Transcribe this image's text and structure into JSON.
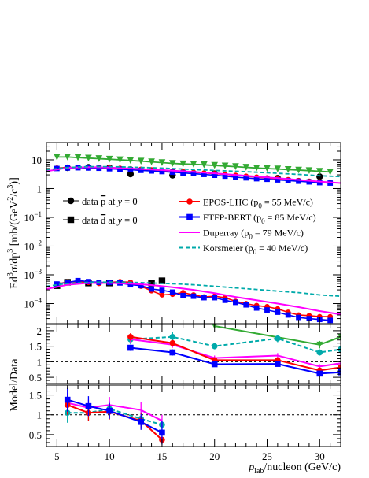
{
  "chart_data": [
    {
      "type": "line",
      "panel": "spectrum",
      "ylabel_parts": [
        "Ed",
        "3",
        "σ/dp",
        "3",
        " [mb/(GeV",
        "2",
        "/c",
        "3",
        ")]"
      ],
      "y_scale": "log",
      "xlim": [
        4,
        32
      ],
      "ylim": [
        2e-05,
        40
      ],
      "y_tick_labels": [
        {
          "v": 10,
          "text": "10"
        },
        {
          "v": 1,
          "text": "1"
        },
        {
          "v": 0.1,
          "base": "10",
          "exp": "−1"
        },
        {
          "v": 0.01,
          "base": "10",
          "exp": "−2"
        },
        {
          "v": 0.001,
          "base": "10",
          "exp": "−3"
        },
        {
          "v": 0.0001,
          "base": "10",
          "exp": "−4"
        }
      ],
      "legend_left": [
        {
          "key": "data_pbar",
          "prefix": "data ",
          "bar": "p",
          "middle": " at ",
          "italic": "y",
          "suffix": " = 0",
          "marker": "circle"
        },
        {
          "key": "data_dbar",
          "prefix": "data ",
          "bar": "d",
          "middle": " at ",
          "italic": "y",
          "suffix": " = 0",
          "marker": "square"
        }
      ],
      "legend_right": [
        {
          "key": "epos",
          "label": "EPOS-LHC",
          "param": "p",
          "sub": "0",
          "value": " = 55 MeV/c",
          "color": "#ff0000",
          "marker": "circle"
        },
        {
          "key": "ftfp",
          "label": "FTFP-BERT",
          "param": "p",
          "sub": "0",
          "value": " = 85 MeV/c",
          "color": "#0000ff",
          "marker": "square"
        },
        {
          "key": "dup",
          "label": "Duperray",
          "param": "p",
          "sub": "0",
          "value": " = 79 MeV/c",
          "color": "#ff00ff",
          "marker": "none"
        },
        {
          "key": "kor",
          "label": "Korsmeier",
          "param": "p",
          "sub": "0",
          "value": " = 40 MeV/c",
          "color": "#00aaaa",
          "marker": "none",
          "dashed": true
        }
      ],
      "series": [
        {
          "key": "data_pbar",
          "color": "#000000",
          "marker": "circle",
          "x": [
            6,
            8,
            10,
            12,
            16,
            20,
            26,
            30
          ],
          "y": [
            5.3,
            5.5,
            5.3,
            3.2,
            2.9,
            3.3,
            2.3,
            2.6
          ]
        },
        {
          "key": "data_dbar",
          "color": "#000000",
          "marker": "square",
          "x": [
            5,
            6,
            8,
            10,
            14,
            15
          ],
          "y": [
            0.00042,
            0.00055,
            0.00052,
            0.00052,
            0.00052,
            0.00062
          ]
        },
        {
          "key": "green_pbar",
          "color": "#33aa33",
          "marker": "triangle-down",
          "x": [
            5,
            6,
            7,
            8,
            9,
            10,
            11,
            12,
            13,
            14,
            15,
            16,
            17,
            18,
            19,
            20,
            21,
            22,
            23,
            24,
            25,
            26,
            27,
            28,
            29,
            30,
            31
          ],
          "y": [
            12.5,
            12.5,
            12,
            11.5,
            11,
            10.5,
            10,
            9.5,
            9,
            8.5,
            8,
            7.5,
            7.2,
            7,
            6.7,
            6.4,
            6.1,
            5.8,
            5.5,
            5.2,
            5,
            4.8,
            4.6,
            4.4,
            4.2,
            4,
            3.8
          ]
        },
        {
          "key": "epos_pbar",
          "color": "#ff0000",
          "marker": "circle",
          "x": [
            5,
            6,
            7,
            8,
            9,
            10,
            11,
            12,
            13,
            14,
            15,
            16,
            17,
            18,
            19,
            20,
            21,
            22,
            23,
            24,
            25,
            26,
            27,
            28,
            29,
            30,
            31
          ],
          "y": [
            5.2,
            5.4,
            5.5,
            5.5,
            5.4,
            5.3,
            5.1,
            4.9,
            4.7,
            4.5,
            4.3,
            4.1,
            3.9,
            3.7,
            3.5,
            3.3,
            3.1,
            2.9,
            2.7,
            2.5,
            2.35,
            2.2,
            2.05,
            1.9,
            1.8,
            1.7,
            1.6
          ]
        },
        {
          "key": "ftfp_pbar",
          "color": "#0000ff",
          "marker": "square",
          "x": [
            5,
            6,
            7,
            8,
            9,
            10,
            11,
            12,
            13,
            14,
            15,
            16,
            17,
            18,
            19,
            20,
            21,
            22,
            23,
            24,
            25,
            26,
            27,
            28,
            29,
            30,
            31
          ],
          "y": [
            5,
            5.2,
            5.3,
            5.2,
            5.1,
            4.9,
            4.7,
            4.5,
            4.3,
            4.1,
            3.9,
            3.7,
            3.5,
            3.3,
            3.1,
            2.9,
            2.7,
            2.5,
            2.35,
            2.2,
            2.1,
            2,
            1.9,
            1.8,
            1.7,
            1.6,
            1.55
          ]
        },
        {
          "key": "dup_pbar",
          "color": "#ff00ff",
          "marker": "none",
          "x": [
            4,
            6,
            8,
            10,
            12,
            14,
            16,
            18,
            20,
            22,
            24,
            26,
            28,
            30,
            32
          ],
          "y": [
            4,
            5.3,
            5.6,
            5.4,
            5,
            4.6,
            4.2,
            3.8,
            3.4,
            3,
            2.6,
            2.3,
            2,
            1.75,
            1.55
          ]
        },
        {
          "key": "kor_pbar",
          "color": "#00aaaa",
          "marker": "none",
          "dashed": true,
          "x": [
            4,
            6,
            8,
            10,
            12,
            14,
            16,
            18,
            20,
            22,
            24,
            26,
            28,
            30,
            32
          ],
          "y": [
            4.5,
            5.4,
            5.8,
            5.8,
            5.6,
            5.3,
            5,
            4.6,
            4.3,
            4,
            3.7,
            3.4,
            3.1,
            2.8,
            2.6
          ]
        },
        {
          "key": "epos_dbar",
          "color": "#ff0000",
          "marker": "circle",
          "x": [
            5,
            6,
            7,
            8,
            9,
            10,
            11,
            12,
            13,
            14,
            15,
            16,
            17,
            18,
            19,
            20,
            21,
            22,
            23,
            24,
            25,
            26,
            27,
            28,
            29,
            30,
            31
          ],
          "y": [
            0.00048,
            0.00056,
            0.00058,
            0.00054,
            0.0005,
            0.00054,
            0.00058,
            0.00055,
            0.0004,
            0.00028,
            0.0002,
            0.00021,
            0.00024,
            0.0002,
            0.00017,
            0.00018,
            0.00016,
            0.00012,
            0.0001,
            8.5e-05,
            7.8e-05,
            6.5e-05,
            5e-05,
            4e-05,
            3.8e-05,
            3.5e-05,
            3.5e-05
          ]
        },
        {
          "key": "ftfp_dbar",
          "color": "#0000ff",
          "marker": "square",
          "x": [
            5,
            6,
            7,
            8,
            9,
            10,
            11,
            12,
            13,
            14,
            15,
            16,
            17,
            18,
            19,
            20,
            21,
            22,
            23,
            24,
            25,
            26,
            27,
            28,
            29,
            30,
            31
          ],
          "y": [
            0.00048,
            0.00054,
            0.00063,
            0.00058,
            0.00055,
            0.00054,
            0.00052,
            0.00045,
            0.00042,
            0.00032,
            0.00029,
            0.00025,
            0.00019,
            0.00018,
            0.00016,
            0.00016,
            0.00013,
            0.00011,
            9e-05,
            7e-05,
            6e-05,
            5e-05,
            4e-05,
            3.3e-05,
            3e-05,
            2.8e-05,
            2.6e-05
          ]
        },
        {
          "key": "dup_dbar",
          "color": "#ff00ff",
          "marker": "none",
          "x": [
            4,
            6,
            8,
            10,
            12,
            14,
            16,
            18,
            20,
            22,
            24,
            26,
            28,
            30,
            32
          ],
          "y": [
            0.00032,
            0.00045,
            0.00052,
            0.00052,
            0.00049,
            0.00044,
            0.00037,
            0.0003,
            0.00023,
            0.00017,
            0.00013,
            0.0001,
            7.5e-05,
            5.5e-05,
            4.2e-05
          ]
        },
        {
          "key": "kor_dbar",
          "color": "#00aaaa",
          "marker": "none",
          "dashed": true,
          "x": [
            4,
            6,
            8,
            10,
            12,
            14,
            16,
            18,
            20,
            22,
            24,
            26,
            28,
            30,
            32
          ],
          "y": [
            0.0004,
            0.0005,
            0.00055,
            0.00056,
            0.00055,
            0.00052,
            0.00049,
            0.00045,
            0.0004,
            0.00035,
            0.00031,
            0.00027,
            0.00024,
            0.0002,
            0.00018
          ]
        }
      ]
    },
    {
      "type": "line",
      "panel": "ratio_pbar",
      "ylabel": "Model/Data",
      "xlim": [
        4,
        32
      ],
      "ylim": [
        0.3,
        2.2
      ],
      "y_ticks": [
        0.5,
        1,
        1.5,
        2
      ],
      "y_tick_labels": [
        "0.5",
        "1",
        "1.5",
        "2"
      ],
      "reference_line": 1,
      "series": [
        {
          "key": "green",
          "color": "#33aa33",
          "marker": "triangle-down",
          "x": [
            20,
            30,
            32
          ],
          "y": [
            2.15,
            1.55,
            1.8
          ],
          "err": [
            0,
            0.12,
            0
          ]
        },
        {
          "key": "kor",
          "color": "#00aaaa",
          "marker": "circle",
          "dashed": true,
          "x": [
            12,
            16,
            20,
            26,
            30,
            32
          ],
          "y": [
            1.72,
            1.8,
            1.5,
            1.75,
            1.3,
            1.4
          ],
          "err": [
            0.15,
            0.15,
            0.1,
            0.12,
            0.1,
            0
          ]
        },
        {
          "key": "dup",
          "color": "#ff00ff",
          "marker": "none",
          "x": [
            12,
            16,
            20,
            26,
            30,
            32
          ],
          "y": [
            1.72,
            1.55,
            1.12,
            1.2,
            0.85,
            0.95
          ],
          "err": [
            0.12,
            0.1,
            0.08,
            0.08,
            0.07,
            0
          ]
        },
        {
          "key": "epos",
          "color": "#ff0000",
          "marker": "circle",
          "x": [
            12,
            16,
            20,
            26,
            30,
            32
          ],
          "y": [
            1.8,
            1.6,
            1.05,
            1.05,
            0.72,
            0.82
          ],
          "err": [
            0.12,
            0.1,
            0.08,
            0.08,
            0.07,
            0
          ]
        },
        {
          "key": "ftfp",
          "color": "#0000ff",
          "marker": "square",
          "x": [
            12,
            16,
            20,
            26,
            30,
            32
          ],
          "y": [
            1.45,
            1.3,
            0.92,
            0.93,
            0.62,
            0.66
          ],
          "err": [
            0.1,
            0.1,
            0.07,
            0.07,
            0.06,
            0
          ]
        }
      ]
    },
    {
      "type": "line",
      "panel": "ratio_dbar",
      "xlabel_parts": [
        "p",
        "lab",
        "/nucleon (GeV/c)"
      ],
      "xlim": [
        4,
        32
      ],
      "ylim": [
        0.2,
        1.75
      ],
      "x_ticks": [
        5,
        10,
        15,
        20,
        25,
        30
      ],
      "x_tick_labels": [
        "5",
        "10",
        "15",
        "20",
        "25",
        "30"
      ],
      "y_ticks": [
        0.5,
        1,
        1.5
      ],
      "y_tick_labels": [
        "0.5",
        "1",
        "1.5"
      ],
      "reference_line": 1,
      "series": [
        {
          "key": "kor",
          "color": "#00aaaa",
          "marker": "circle",
          "dashed": true,
          "x": [
            6,
            8,
            10,
            13,
            15
          ],
          "y": [
            1.05,
            1.05,
            1.15,
            0.9,
            0.75
          ],
          "err": [
            0.25,
            0.2,
            0.2,
            0.2,
            0.15
          ]
        },
        {
          "key": "dup",
          "color": "#ff00ff",
          "marker": "none",
          "x": [
            6,
            8,
            10,
            13,
            15
          ],
          "y": [
            1.3,
            1.18,
            1.25,
            1.12,
            0.85
          ],
          "err": [
            0.25,
            0.2,
            0.2,
            0.2,
            0.15
          ]
        },
        {
          "key": "epos",
          "color": "#ff0000",
          "marker": "circle",
          "x": [
            6,
            8,
            10,
            13,
            15
          ],
          "y": [
            1.25,
            1.05,
            1.08,
            0.85,
            0.37
          ],
          "err": [
            0.25,
            0.2,
            0.2,
            0.2,
            0.1
          ]
        },
        {
          "key": "ftfp",
          "color": "#0000ff",
          "marker": "square",
          "x": [
            6,
            8,
            10,
            13,
            15
          ],
          "y": [
            1.38,
            1.22,
            1.1,
            0.82,
            0.55
          ],
          "err": [
            0.3,
            0.25,
            0.2,
            0.2,
            0.3
          ]
        }
      ]
    }
  ]
}
